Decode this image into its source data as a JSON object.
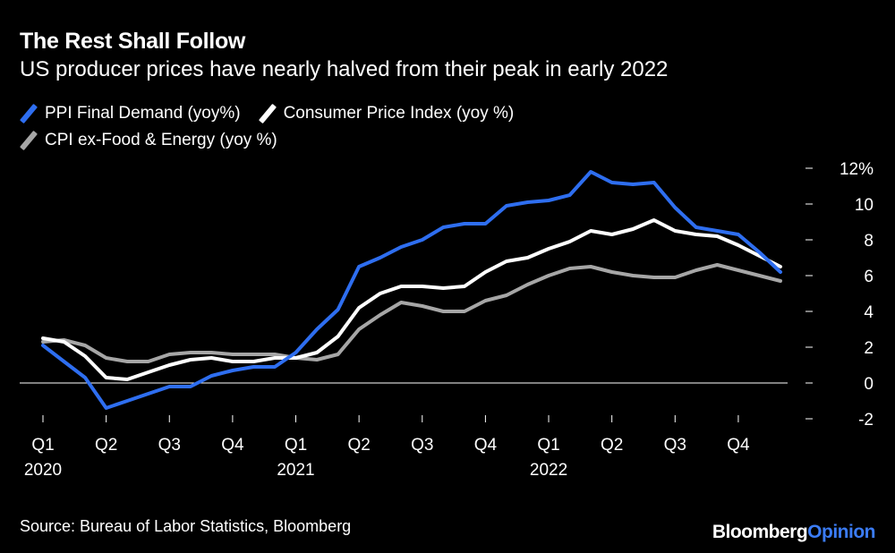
{
  "title": "The Rest Shall Follow",
  "subtitle": "US producer prices have nearly halved from their peak in early 2022",
  "source": "Source: Bureau of Labor Statistics, Bloomberg",
  "brand": {
    "name": "Bloomberg",
    "suffix": "Opinion"
  },
  "chart_data": {
    "type": "line",
    "title": "The Rest Shall Follow",
    "subtitle": "US producer prices have nearly halved from their peak in early 2022",
    "x": [
      "2020-01",
      "2020-02",
      "2020-03",
      "2020-04",
      "2020-05",
      "2020-06",
      "2020-07",
      "2020-08",
      "2020-09",
      "2020-10",
      "2020-11",
      "2020-12",
      "2021-01",
      "2021-02",
      "2021-03",
      "2021-04",
      "2021-05",
      "2021-06",
      "2021-07",
      "2021-08",
      "2021-09",
      "2021-10",
      "2021-11",
      "2021-12",
      "2022-01",
      "2022-02",
      "2022-03",
      "2022-04",
      "2022-05",
      "2022-06",
      "2022-07",
      "2022-08",
      "2022-09",
      "2022-10",
      "2022-11",
      "2022-12"
    ],
    "x_ticks": [
      {
        "x": "2020-01",
        "label": "Q1",
        "year": "2020"
      },
      {
        "x": "2020-04",
        "label": "Q2",
        "year": ""
      },
      {
        "x": "2020-07",
        "label": "Q3",
        "year": ""
      },
      {
        "x": "2020-10",
        "label": "Q4",
        "year": ""
      },
      {
        "x": "2021-01",
        "label": "Q1",
        "year": "2021"
      },
      {
        "x": "2021-04",
        "label": "Q2",
        "year": ""
      },
      {
        "x": "2021-07",
        "label": "Q3",
        "year": ""
      },
      {
        "x": "2021-10",
        "label": "Q4",
        "year": ""
      },
      {
        "x": "2022-01",
        "label": "Q1",
        "year": "2022"
      },
      {
        "x": "2022-04",
        "label": "Q2",
        "year": ""
      },
      {
        "x": "2022-07",
        "label": "Q3",
        "year": ""
      },
      {
        "x": "2022-10",
        "label": "Q4",
        "year": ""
      }
    ],
    "ylim": [
      -2,
      12
    ],
    "y_ticks": [
      {
        "value": 12,
        "label": "12%"
      },
      {
        "value": 10,
        "label": "10"
      },
      {
        "value": 8,
        "label": "8"
      },
      {
        "value": 6,
        "label": "6"
      },
      {
        "value": 4,
        "label": "4"
      },
      {
        "value": 2,
        "label": "2"
      },
      {
        "value": 0,
        "label": "0"
      },
      {
        "value": -2,
        "label": "-2"
      }
    ],
    "legend_position": "top-left",
    "series": [
      {
        "name": "PPI Final Demand (yoy%)",
        "color": "#2e6ef0",
        "values": [
          2.1,
          1.2,
          0.3,
          -1.4,
          -1.0,
          -0.6,
          -0.2,
          -0.2,
          0.4,
          0.7,
          0.9,
          0.9,
          1.7,
          3.0,
          4.1,
          6.5,
          7.0,
          7.6,
          8.0,
          8.7,
          8.9,
          8.9,
          9.9,
          10.1,
          10.2,
          10.5,
          11.8,
          11.2,
          11.1,
          11.2,
          9.8,
          8.7,
          8.5,
          8.3,
          7.3,
          6.2
        ]
      },
      {
        "name": "Consumer Price Index (yoy %)",
        "color": "#ffffff",
        "values": [
          2.5,
          2.3,
          1.5,
          0.3,
          0.2,
          0.6,
          1.0,
          1.3,
          1.4,
          1.2,
          1.2,
          1.4,
          1.4,
          1.7,
          2.6,
          4.2,
          5.0,
          5.4,
          5.4,
          5.3,
          5.4,
          6.2,
          6.8,
          7.0,
          7.5,
          7.9,
          8.5,
          8.3,
          8.6,
          9.1,
          8.5,
          8.3,
          8.2,
          7.7,
          7.1,
          6.5
        ]
      },
      {
        "name": "CPI ex-Food & Energy (yoy %)",
        "color": "#a6a6a6",
        "values": [
          2.3,
          2.4,
          2.1,
          1.4,
          1.2,
          1.2,
          1.6,
          1.7,
          1.7,
          1.6,
          1.6,
          1.6,
          1.4,
          1.3,
          1.6,
          3.0,
          3.8,
          4.5,
          4.3,
          4.0,
          4.0,
          4.6,
          4.9,
          5.5,
          6.0,
          6.4,
          6.5,
          6.2,
          6.0,
          5.9,
          5.9,
          6.3,
          6.6,
          6.3,
          6.0,
          5.7
        ]
      }
    ]
  }
}
